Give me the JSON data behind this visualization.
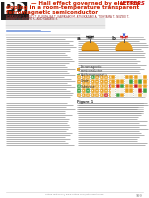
{
  "bg_color": "#ffffff",
  "letters_color": "#cc0000",
  "title_color": "#cc2200",
  "orange_color": "#e8a020",
  "green_color": "#40a040",
  "red_color": "#cc2222",
  "white_color": "#ffffff",
  "cream_color": "#f5f0e0"
}
